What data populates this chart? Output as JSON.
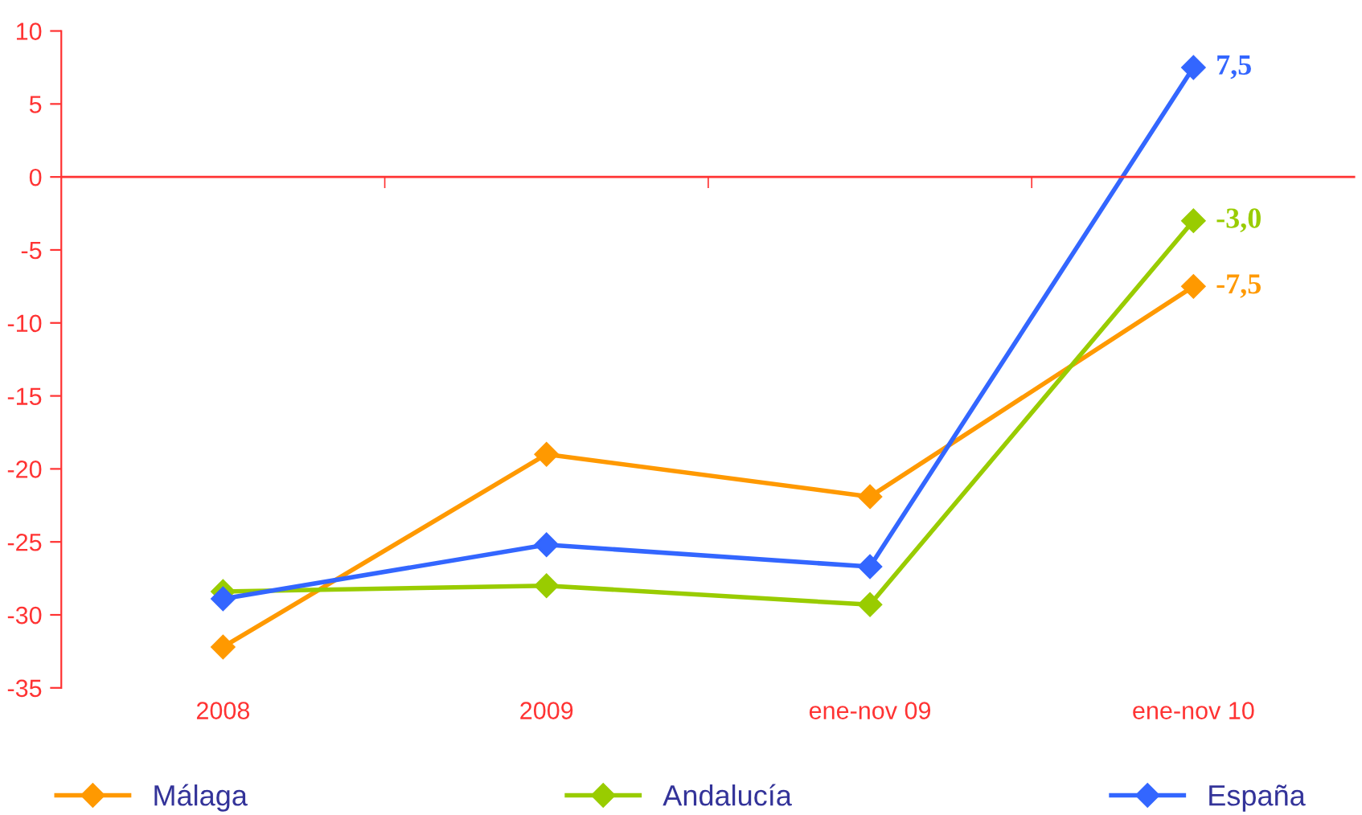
{
  "chart_data": {
    "type": "line",
    "categories": [
      "2008",
      "2009",
      "ene-nov 09",
      "ene-nov 10"
    ],
    "series": [
      {
        "name": "Málaga",
        "color": "#ff9900",
        "values": [
          -32.2,
          -19.0,
          -21.9,
          -7.5
        ],
        "value_labels": [
          null,
          null,
          null,
          "-7,5"
        ]
      },
      {
        "name": "Andalucía",
        "color": "#99cc00",
        "values": [
          -28.4,
          -28.0,
          -29.3,
          -3.0
        ],
        "value_labels": [
          null,
          null,
          null,
          "-3,0"
        ]
      },
      {
        "name": "España",
        "color": "#3366ff",
        "values": [
          -28.9,
          -25.2,
          -26.7,
          7.5
        ],
        "value_labels": [
          null,
          null,
          null,
          "7,5"
        ]
      }
    ],
    "ylim": [
      -35,
      10
    ],
    "yticks": [
      -35,
      -30,
      -25,
      -20,
      -15,
      -10,
      -5,
      0,
      5,
      10
    ],
    "ref_lines": [
      {
        "axis": "y",
        "value": 0,
        "color": "#ff3333"
      }
    ],
    "grid": false,
    "legend": "bottom",
    "marker": "diamond",
    "line_style": "solid"
  }
}
